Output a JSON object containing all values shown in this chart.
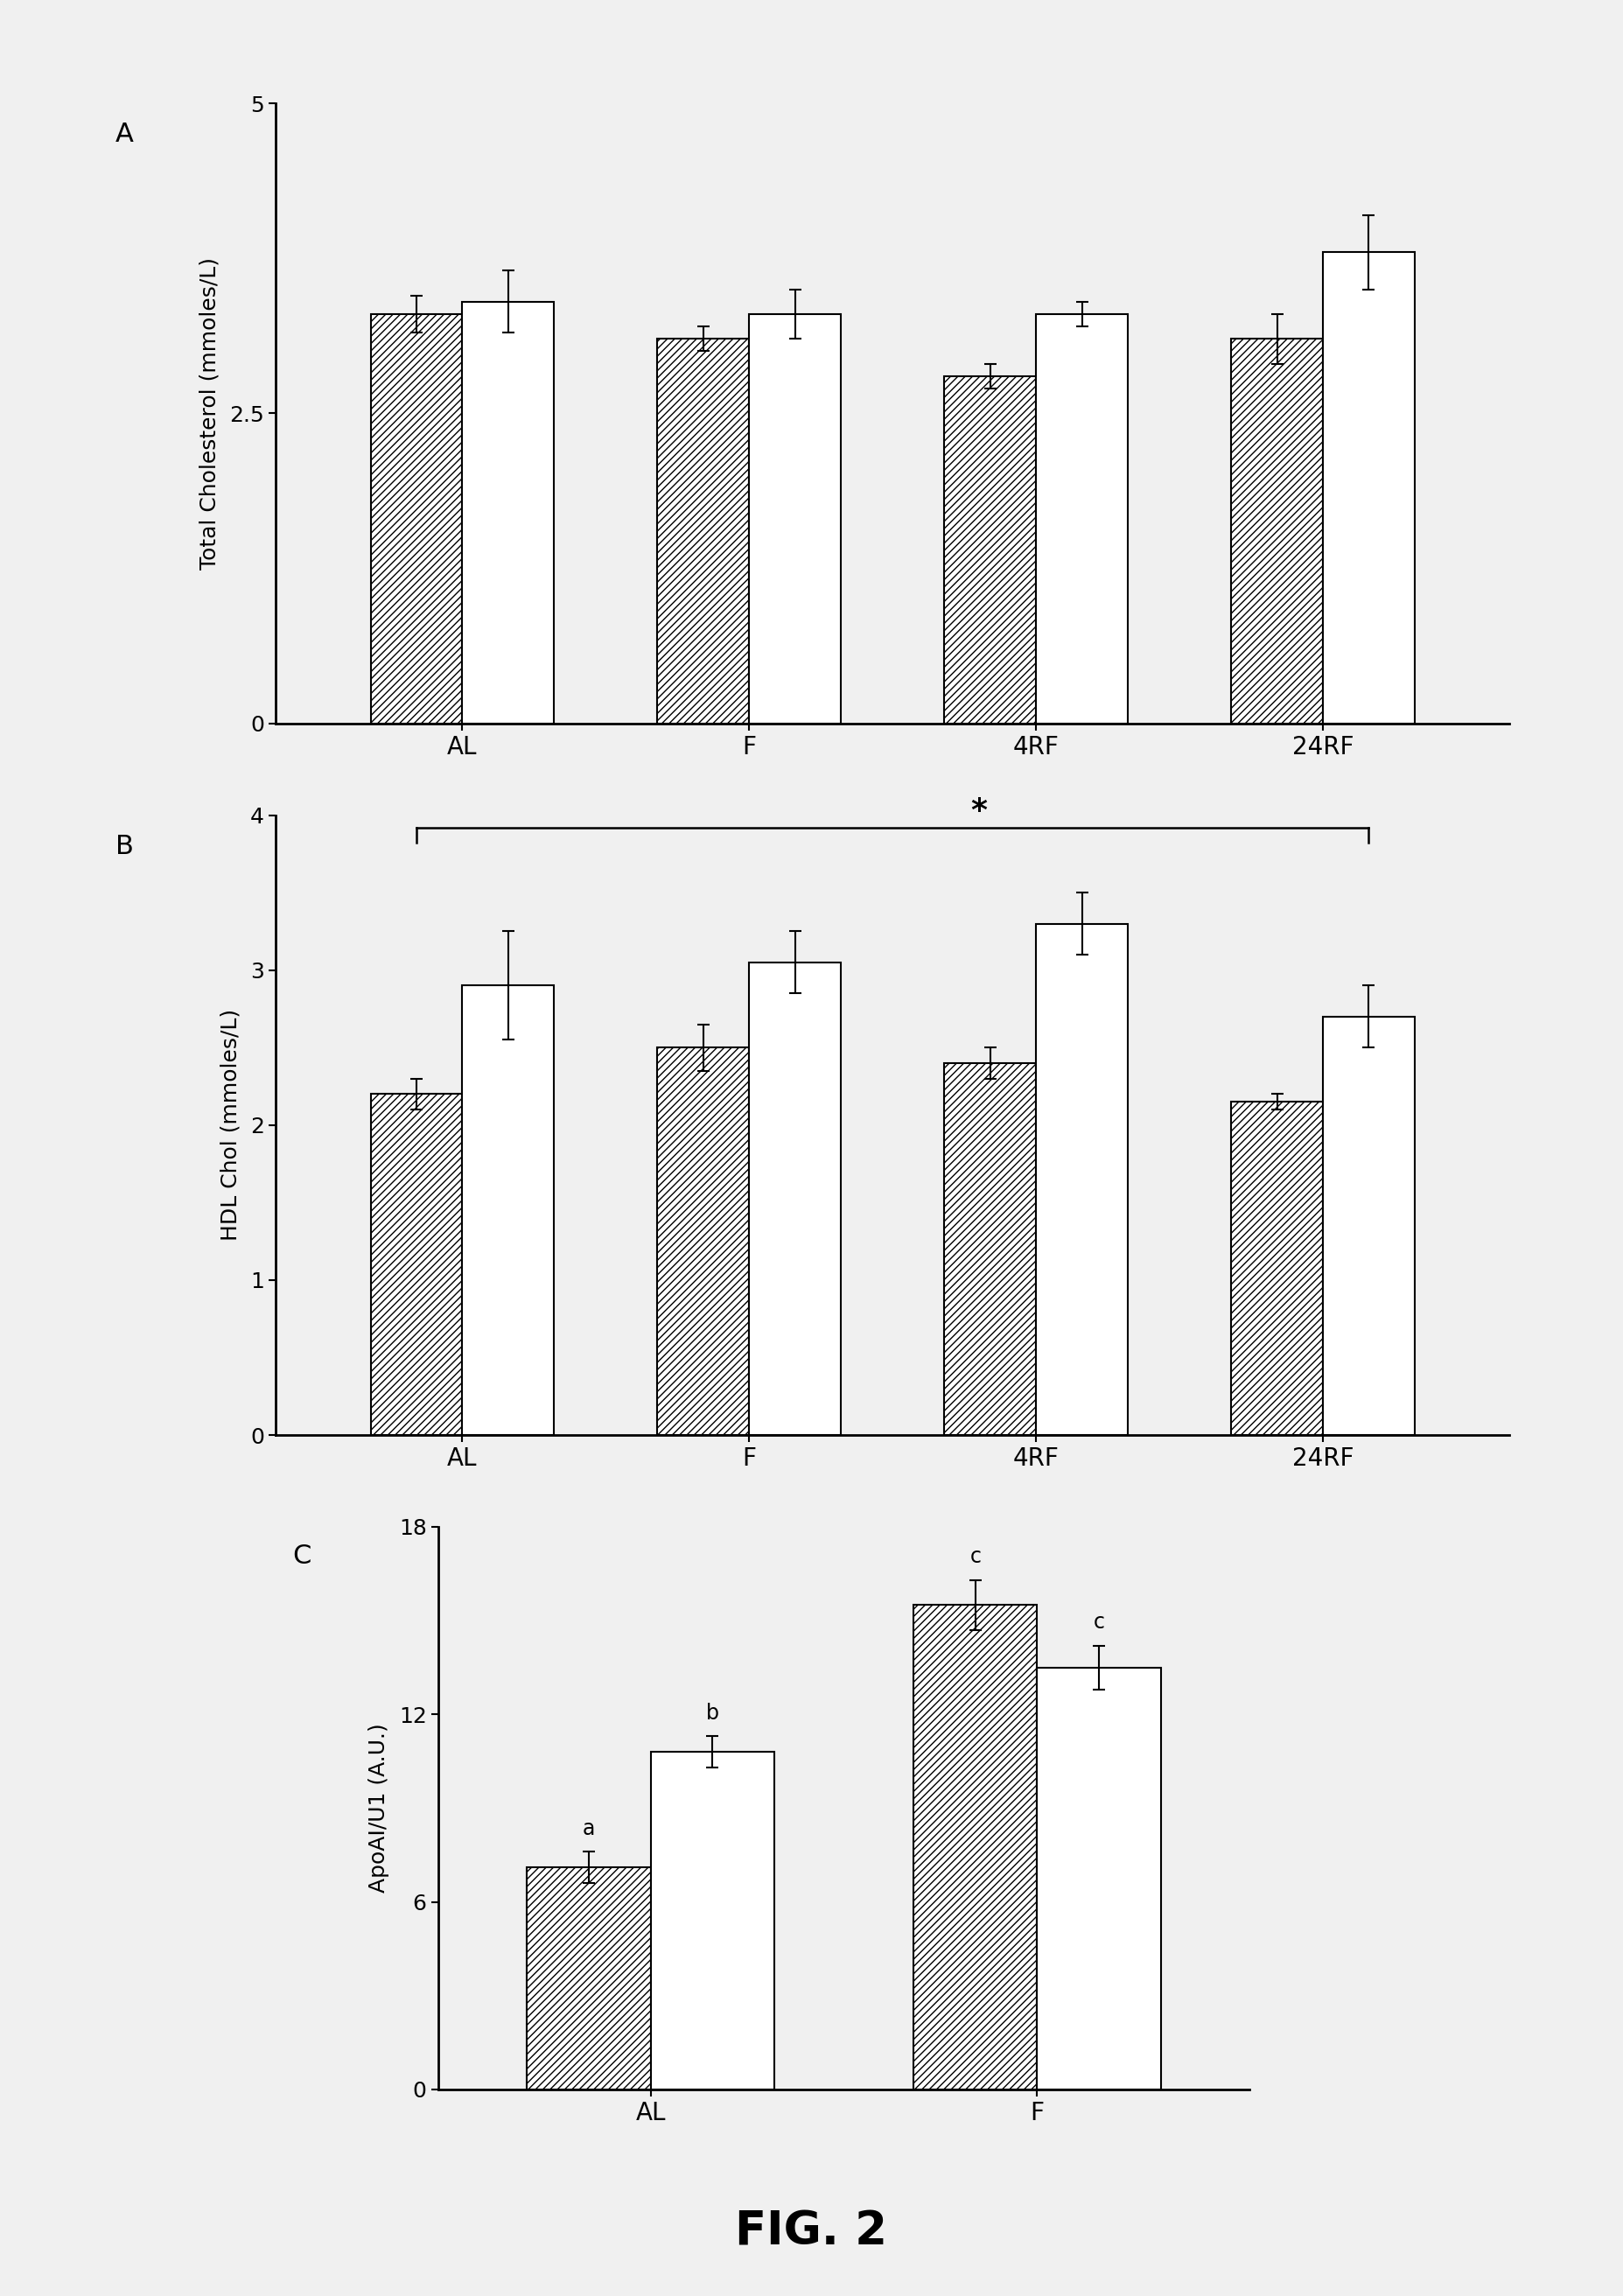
{
  "panel_A": {
    "label": "A",
    "categories": [
      "AL",
      "F",
      "4RF",
      "24RF"
    ],
    "hatched_values": [
      3.3,
      3.1,
      2.8,
      3.1
    ],
    "hatched_errors": [
      0.15,
      0.1,
      0.1,
      0.2
    ],
    "open_values": [
      3.4,
      3.3,
      3.3,
      3.8
    ],
    "open_errors": [
      0.25,
      0.2,
      0.1,
      0.3
    ],
    "ylabel": "Total Cholesterol (mmoles/L)",
    "ylim": [
      0,
      5
    ],
    "yticks": [
      0,
      2.5,
      5
    ]
  },
  "panel_B": {
    "label": "B",
    "categories": [
      "AL",
      "F",
      "4RF",
      "24RF"
    ],
    "hatched_values": [
      2.2,
      2.5,
      2.4,
      2.15
    ],
    "hatched_errors": [
      0.1,
      0.15,
      0.1,
      0.05
    ],
    "open_values": [
      2.9,
      3.05,
      3.3,
      2.7
    ],
    "open_errors": [
      0.35,
      0.2,
      0.2,
      0.2
    ],
    "ylabel": "HDL Chol (mmoles/L)",
    "ylim": [
      0,
      4
    ],
    "yticks": [
      0,
      1,
      2,
      3,
      4
    ],
    "significance_line": true
  },
  "panel_C": {
    "label": "C",
    "categories": [
      "AL",
      "F"
    ],
    "hatched_values": [
      7.1,
      15.5
    ],
    "hatched_errors": [
      0.5,
      0.8
    ],
    "open_values": [
      10.8,
      13.5
    ],
    "open_errors": [
      0.5,
      0.7
    ],
    "hatched_labels": [
      "a",
      "c"
    ],
    "open_labels": [
      "b",
      "c"
    ],
    "ylabel": "ApoAI/U1 (A.U.)",
    "ylim": [
      0,
      18
    ],
    "yticks": [
      0,
      6,
      12,
      18
    ]
  },
  "figure_label": "FIG. 2",
  "bar_width": 0.32,
  "hatch_pattern": "////",
  "background_color": "#f0f0f0",
  "bar_edge_color": "#000000",
  "font_size_label": 20,
  "font_size_tick": 18,
  "font_size_ylabel": 18,
  "font_size_panel_label": 22,
  "font_size_fig_label": 38
}
